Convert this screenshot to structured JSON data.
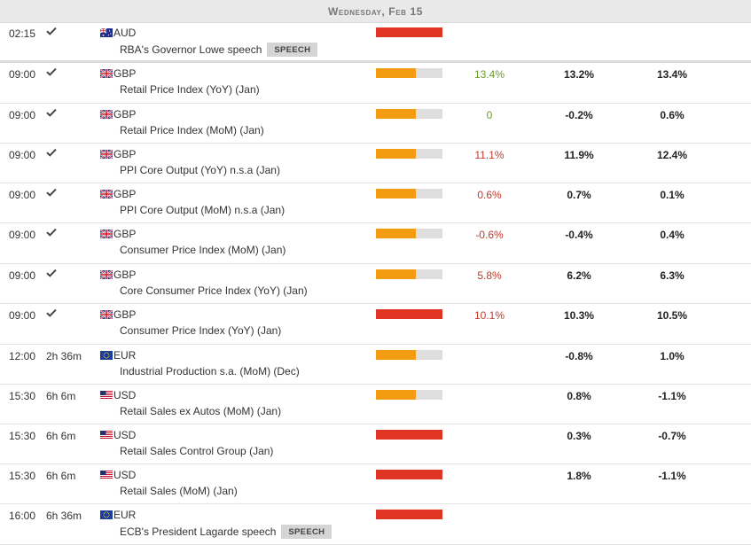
{
  "header": {
    "day_label": "Wednesday, Feb 15"
  },
  "colors": {
    "high": "#e03424",
    "medium": "#f39c12",
    "bar_bg": "#dedede",
    "positive": "#6a9a2c",
    "negative": "#c0392b"
  },
  "columns": [
    "time",
    "countdown",
    "currency",
    "event",
    "impact",
    "actual",
    "consensus",
    "previous"
  ],
  "rows": [
    {
      "time": "02:15",
      "countdown": "",
      "done": true,
      "flag": "au-flag-icon",
      "currency": "AUD",
      "event": "RBA's Governor Lowe speech",
      "tag": "SPEECH",
      "impact": "high",
      "impact_level": 1.0,
      "actual": "",
      "actual_dir": "",
      "consensus": "",
      "previous": ""
    },
    {
      "time": "09:00",
      "countdown": "",
      "done": true,
      "flag": "gb-flag-icon",
      "currency": "GBP",
      "event": "Retail Price Index (YoY) (Jan)",
      "tag": "",
      "impact": "medium",
      "impact_level": 0.6,
      "actual": "13.4%",
      "actual_dir": "pos",
      "consensus": "13.2%",
      "previous": "13.4%"
    },
    {
      "time": "09:00",
      "countdown": "",
      "done": true,
      "flag": "gb-flag-icon",
      "currency": "GBP",
      "event": "Retail Price Index (MoM) (Jan)",
      "tag": "",
      "impact": "medium",
      "impact_level": 0.6,
      "actual": "0",
      "actual_dir": "pos",
      "consensus": "-0.2%",
      "previous": "0.6%"
    },
    {
      "time": "09:00",
      "countdown": "",
      "done": true,
      "flag": "gb-flag-icon",
      "currency": "GBP",
      "event": "PPI Core Output (YoY) n.s.a (Jan)",
      "tag": "",
      "impact": "medium",
      "impact_level": 0.6,
      "actual": "11.1%",
      "actual_dir": "neg",
      "consensus": "11.9%",
      "previous": "12.4%"
    },
    {
      "time": "09:00",
      "countdown": "",
      "done": true,
      "flag": "gb-flag-icon",
      "currency": "GBP",
      "event": "PPI Core Output (MoM) n.s.a (Jan)",
      "tag": "",
      "impact": "medium",
      "impact_level": 0.6,
      "actual": "0.6%",
      "actual_dir": "neg",
      "consensus": "0.7%",
      "previous": "0.1%"
    },
    {
      "time": "09:00",
      "countdown": "",
      "done": true,
      "flag": "gb-flag-icon",
      "currency": "GBP",
      "event": "Consumer Price Index (MoM) (Jan)",
      "tag": "",
      "impact": "medium",
      "impact_level": 0.6,
      "actual": "-0.6%",
      "actual_dir": "neg",
      "consensus": "-0.4%",
      "previous": "0.4%"
    },
    {
      "time": "09:00",
      "countdown": "",
      "done": true,
      "flag": "gb-flag-icon",
      "currency": "GBP",
      "event": "Core Consumer Price Index (YoY) (Jan)",
      "tag": "",
      "impact": "medium",
      "impact_level": 0.6,
      "actual": "5.8%",
      "actual_dir": "neg",
      "consensus": "6.2%",
      "previous": "6.3%"
    },
    {
      "time": "09:00",
      "countdown": "",
      "done": true,
      "flag": "gb-flag-icon",
      "currency": "GBP",
      "event": "Consumer Price Index (YoY) (Jan)",
      "tag": "",
      "impact": "high",
      "impact_level": 1.0,
      "actual": "10.1%",
      "actual_dir": "neg",
      "consensus": "10.3%",
      "previous": "10.5%"
    },
    {
      "time": "12:00",
      "countdown": "2h 36m",
      "done": false,
      "flag": "eu-flag-icon",
      "currency": "EUR",
      "event": "Industrial Production s.a. (MoM) (Dec)",
      "tag": "",
      "impact": "medium",
      "impact_level": 0.6,
      "actual": "",
      "actual_dir": "",
      "consensus": "-0.8%",
      "previous": "1.0%"
    },
    {
      "time": "15:30",
      "countdown": "6h 6m",
      "done": false,
      "flag": "us-flag-icon",
      "currency": "USD",
      "event": "Retail Sales ex Autos (MoM) (Jan)",
      "tag": "",
      "impact": "medium",
      "impact_level": 0.6,
      "actual": "",
      "actual_dir": "",
      "consensus": "0.8%",
      "previous": "-1.1%"
    },
    {
      "time": "15:30",
      "countdown": "6h 6m",
      "done": false,
      "flag": "us-flag-icon",
      "currency": "USD",
      "event": "Retail Sales Control Group (Jan)",
      "tag": "",
      "impact": "high",
      "impact_level": 1.0,
      "actual": "",
      "actual_dir": "",
      "consensus": "0.3%",
      "previous": "-0.7%"
    },
    {
      "time": "15:30",
      "countdown": "6h 6m",
      "done": false,
      "flag": "us-flag-icon",
      "currency": "USD",
      "event": "Retail Sales (MoM) (Jan)",
      "tag": "",
      "impact": "high",
      "impact_level": 1.0,
      "actual": "",
      "actual_dir": "",
      "consensus": "1.8%",
      "previous": "-1.1%"
    },
    {
      "time": "16:00",
      "countdown": "6h 36m",
      "done": false,
      "flag": "eu-flag-icon",
      "currency": "EUR",
      "event": "ECB's President Lagarde speech",
      "tag": "SPEECH",
      "impact": "high",
      "impact_level": 1.0,
      "actual": "",
      "actual_dir": "",
      "consensus": "",
      "previous": ""
    }
  ]
}
